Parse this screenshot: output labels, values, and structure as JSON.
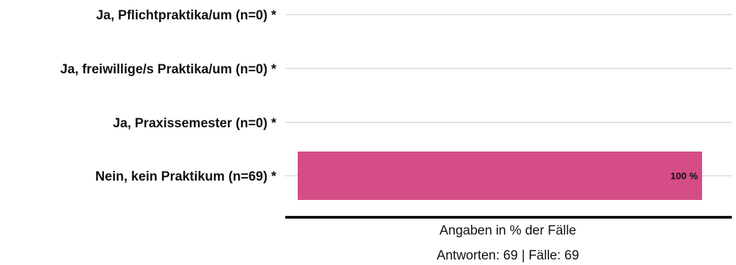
{
  "chart_data": {
    "type": "bar",
    "orientation": "horizontal",
    "categories": [
      "Ja, Pflichtpraktika/um (n=0) *",
      "Ja, freiwillige/s Praktika/um (n=0) *",
      "Ja, Praxissemester (n=0) *",
      "Nein, kein Praktikum (n=69) *"
    ],
    "values": [
      0,
      0,
      0,
      100
    ],
    "data_labels": [
      "",
      "",
      "",
      "100 %"
    ],
    "xlim": [
      0,
      100
    ],
    "grid": true,
    "bar_color": "#d44d86",
    "grid_color": "#e3e3e3",
    "axis_color": "#111111",
    "xlabel": "Angaben in % der Fälle",
    "footer": "Antworten: 69 | Fälle: 69"
  }
}
